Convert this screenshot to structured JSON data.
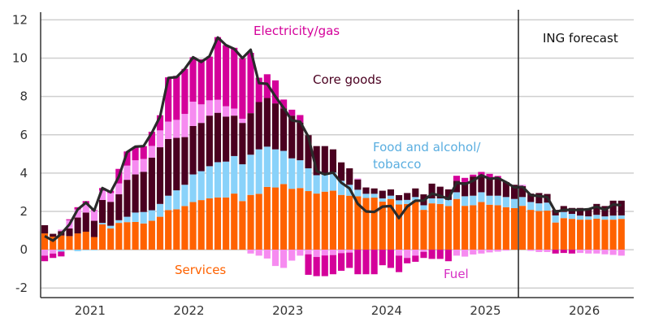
{
  "chart_data": {
    "type": "bar",
    "stacked": true,
    "x_start": "2021-01",
    "x_end": "2026-12",
    "x_tick_labels": [
      "2021",
      "2022",
      "2023",
      "2024",
      "2025",
      "2026"
    ],
    "ylim": [
      -2.5,
      12.4
    ],
    "y_ticks": [
      -2,
      0,
      2,
      4,
      6,
      8,
      10,
      12
    ],
    "grid": true,
    "forecast_start": "2025-11",
    "forecast_label": "ING forecast",
    "series": [
      {
        "name": "Services",
        "color": "#ff6200",
        "values": [
          0.85,
          0.68,
          0.74,
          0.71,
          0.85,
          0.94,
          0.66,
          1.32,
          1.11,
          1.4,
          1.44,
          1.45,
          1.37,
          1.51,
          1.72,
          2.07,
          2.11,
          2.28,
          2.49,
          2.59,
          2.68,
          2.73,
          2.73,
          2.93,
          2.54,
          2.86,
          2.92,
          3.28,
          3.25,
          3.43,
          3.18,
          3.22,
          3.06,
          2.93,
          3.03,
          3.08,
          2.86,
          2.82,
          2.79,
          2.7,
          2.72,
          2.51,
          2.65,
          2.36,
          2.39,
          2.56,
          2.08,
          2.42,
          2.39,
          2.28,
          2.65,
          2.29,
          2.32,
          2.49,
          2.35,
          2.32,
          2.22,
          2.17,
          2.29,
          2.08,
          2.02,
          2.04,
          1.42,
          1.65,
          1.61,
          1.57,
          1.57,
          1.62,
          1.57,
          1.57,
          1.61
        ]
      },
      {
        "name": "Food and alcohol/ tobacco",
        "color": "#89d2fa",
        "values": [
          0,
          0,
          -0.1,
          0,
          -0.08,
          -0.03,
          -0.03,
          0.08,
          0.14,
          0.14,
          0.28,
          0.49,
          0.6,
          0.55,
          0.67,
          0.75,
          0.99,
          1.11,
          1.44,
          1.51,
          1.68,
          1.84,
          1.87,
          1.96,
          1.92,
          2.1,
          2.32,
          2.1,
          1.99,
          1.73,
          1.59,
          1.45,
          1.19,
          0.96,
          0.93,
          0.95,
          0.74,
          0.57,
          0.34,
          0.22,
          0.2,
          0.17,
          0.17,
          0.22,
          0.21,
          0.19,
          0.24,
          0.26,
          0.29,
          0.32,
          0.35,
          0.5,
          0.5,
          0.51,
          0.47,
          0.5,
          0.53,
          0.48,
          0.46,
          0.41,
          0.4,
          0.42,
          0.37,
          0.32,
          0.26,
          0.21,
          0.17,
          0.2,
          0.17,
          0.21,
          0.18
        ]
      },
      {
        "name": "Core goods",
        "color": "#4a0020",
        "values": [
          0.43,
          0.15,
          0.23,
          0.4,
          0.83,
          1.0,
          0.85,
          1.2,
          1.25,
          1.36,
          1.93,
          1.99,
          2.1,
          2.75,
          2.96,
          2.96,
          2.74,
          2.49,
          2.53,
          2.52,
          2.64,
          2.58,
          2.35,
          2.11,
          2.16,
          2.17,
          2.47,
          2.54,
          2.4,
          2.22,
          2.23,
          1.97,
          1.73,
          1.52,
          1.45,
          1.21,
          0.96,
          0.86,
          0.54,
          0.33,
          0.28,
          0.4,
          0.33,
          0.27,
          0.36,
          0.45,
          0.57,
          0.77,
          0.61,
          0.55,
          0.6,
          0.74,
          1.0,
          0.89,
          0.88,
          0.86,
          0.78,
          0.74,
          0.57,
          0.44,
          0.54,
          0.45,
          0.29,
          0.31,
          0.31,
          0.4,
          0.4,
          0.57,
          0.54,
          0.78,
          0.77
        ]
      },
      {
        "name": "Fuel",
        "color": "#f68bf0",
        "values": [
          -0.31,
          -0.2,
          0.08,
          0.43,
          0.42,
          0.42,
          0.53,
          0.48,
          0.46,
          0.56,
          0.74,
          0.74,
          0.67,
          0.61,
          0.88,
          0.91,
          0.94,
          1.21,
          1.27,
          0.97,
          0.8,
          0.68,
          0.54,
          0.37,
          0.22,
          -0.2,
          -0.31,
          -0.46,
          -0.85,
          -0.95,
          -0.57,
          -0.31,
          -0.24,
          -0.38,
          -0.3,
          -0.28,
          -0.18,
          -0.15,
          0.05,
          0,
          0,
          0,
          0,
          -0.31,
          -0.43,
          -0.31,
          -0.11,
          0,
          0,
          0,
          -0.31,
          -0.36,
          -0.25,
          -0.2,
          -0.14,
          -0.1,
          -0.05,
          0,
          0.07,
          -0.06,
          -0.12,
          -0.12,
          0,
          0,
          0,
          -0.17,
          -0.2,
          -0.2,
          -0.24,
          -0.27,
          -0.31
        ]
      },
      {
        "name": "Electricity/gas",
        "color": "#d4009a",
        "values": [
          -0.29,
          -0.23,
          -0.25,
          0.05,
          0.12,
          0.18,
          0.03,
          0.14,
          0.12,
          0.76,
          0.74,
          0.69,
          0.67,
          0.74,
          0.79,
          2.31,
          2.3,
          2.35,
          2.32,
          2.35,
          2.28,
          3.27,
          3.19,
          3.17,
          3.16,
          3.15,
          1.27,
          1.24,
          1.2,
          0.46,
          0.31,
          0.39,
          -1.07,
          -1.0,
          -1.08,
          -1.0,
          -0.92,
          -0.8,
          -1.28,
          -1.28,
          -1.28,
          -0.81,
          -0.95,
          -0.86,
          -0.28,
          -0.32,
          -0.32,
          -0.48,
          -0.48,
          -0.6,
          0.26,
          0.22,
          0.1,
          0.17,
          0.26,
          0.17,
          0,
          0,
          0,
          0,
          0,
          0,
          -0.2,
          -0.17,
          -0.2,
          0,
          0,
          0,
          0,
          0,
          0
        ]
      }
    ],
    "line": {
      "color": "#2a2a2a",
      "values": [
        0.71,
        0.47,
        0.83,
        1.32,
        2.1,
        2.46,
        2.04,
        3.22,
        3.0,
        3.82,
        5.1,
        5.38,
        5.41,
        6.1,
        6.95,
        8.97,
        9.01,
        9.44,
        10.05,
        9.8,
        10.1,
        11.08,
        10.68,
        10.48,
        10.0,
        10.44,
        8.7,
        8.66,
        8.0,
        7.4,
        6.75,
        6.68,
        5.9,
        4.1,
        3.93,
        4.03,
        3.5,
        3.2,
        2.4,
        2.0,
        1.97,
        2.25,
        2.28,
        1.65,
        2.25,
        2.56,
        2.56,
        2.93,
        2.82,
        2.65,
        3.5,
        3.42,
        3.6,
        3.89,
        3.7,
        3.75,
        3.53,
        3.25,
        3.28,
        2.85,
        2.8,
        2.75,
        1.97,
        2.08,
        2.08,
        2.08,
        2.11,
        2.25,
        2.08,
        2.36,
        2.32
      ]
    },
    "annotations": {
      "electricity": {
        "text": "Electricity/gas",
        "color": "#d4009a"
      },
      "core": {
        "text": "Core goods",
        "color": "#4a0020"
      },
      "food_1": {
        "text": "Food and alcohol/",
        "color": "#5aaee0"
      },
      "food_2": {
        "text": "tobacco",
        "color": "#5aaee0"
      },
      "services": {
        "text": "Services",
        "color": "#ff6200"
      },
      "fuel": {
        "text": "Fuel",
        "color": "#d62fc4"
      }
    }
  }
}
